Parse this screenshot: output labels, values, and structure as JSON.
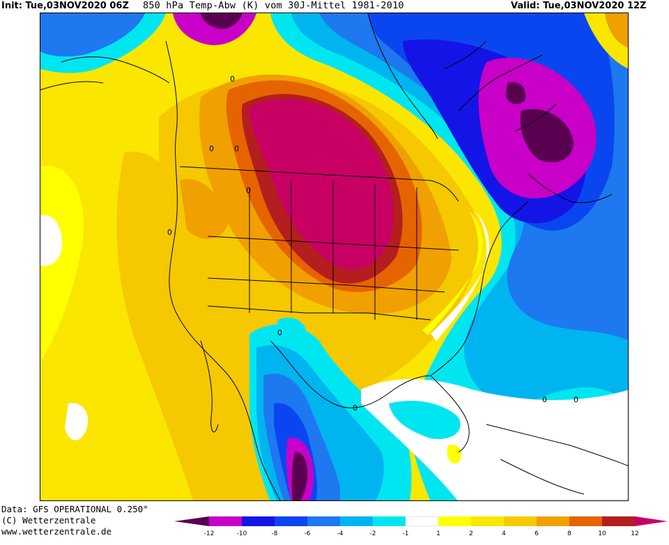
{
  "header": {
    "init": "Init: Tue,03NOV2020 06Z",
    "title": "850 hPa Temp-Abw (K) vom 30J-Mittel 1981-2010",
    "valid": "Valid: Tue,03NOV2020 12Z"
  },
  "footer": {
    "data_source": "Data: GFS OPERATIONAL 0.250°",
    "copyright": "(C) Wetterzentrale",
    "url": "www.wetterzentrale.de"
  },
  "map_labels": {
    "zero": "0"
  },
  "legend": {
    "ticks": [
      "-12",
      "-10",
      "-8",
      "-6",
      "-4",
      "-2",
      "-1",
      "1",
      "2",
      "4",
      "6",
      "8",
      "10",
      "12"
    ],
    "colors": {
      "lt_-12": "#5a0050",
      "-12_-10": "#c800c8",
      "-10_-8": "#1414e6",
      "-8_-6": "#0a46f0",
      "-6_-4": "#1e78f0",
      "-4_-2": "#00b4f0",
      "-2_-1": "#00e6f0",
      "-1_1": "#ffffff",
      "1_2": "#ffff00",
      "2_4": "#fae600",
      "4_6": "#f5c800",
      "6_8": "#f0a000",
      "8_10": "#e66400",
      "10_12": "#b41e1e",
      "gt_12": "#c80064"
    }
  }
}
